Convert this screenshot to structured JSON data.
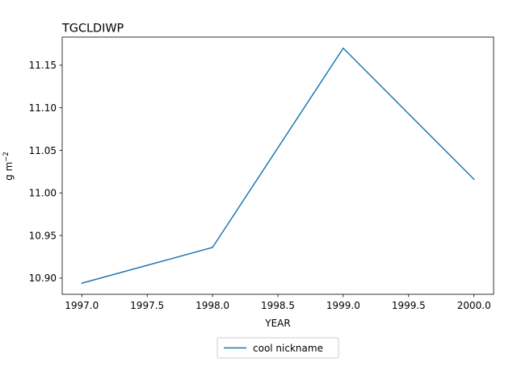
{
  "chart_data": {
    "type": "line",
    "title": "TGCLDIWP",
    "xlabel": "YEAR",
    "ylabel_base": "g m",
    "ylabel_exp": "−2",
    "xlim": [
      1996.85,
      2000.15
    ],
    "ylim": [
      10.881,
      11.183
    ],
    "xticks": [
      1997.0,
      1997.5,
      1998.0,
      1998.5,
      1999.0,
      1999.5,
      2000.0
    ],
    "xtick_labels": [
      "1997.0",
      "1997.5",
      "1998.0",
      "1998.5",
      "1999.0",
      "1999.5",
      "2000.0"
    ],
    "yticks": [
      10.9,
      10.95,
      11.0,
      11.05,
      11.1,
      11.15
    ],
    "ytick_labels": [
      "10.90",
      "10.95",
      "11.00",
      "11.05",
      "11.10",
      "11.15"
    ],
    "grid": false,
    "legend_position": "below plot, centered",
    "series": [
      {
        "name": "cool nickname",
        "color": "#1f77b4",
        "x": [
          1997,
          1998,
          1999,
          2000
        ],
        "y": [
          10.894,
          10.936,
          11.17,
          11.016
        ]
      }
    ]
  }
}
